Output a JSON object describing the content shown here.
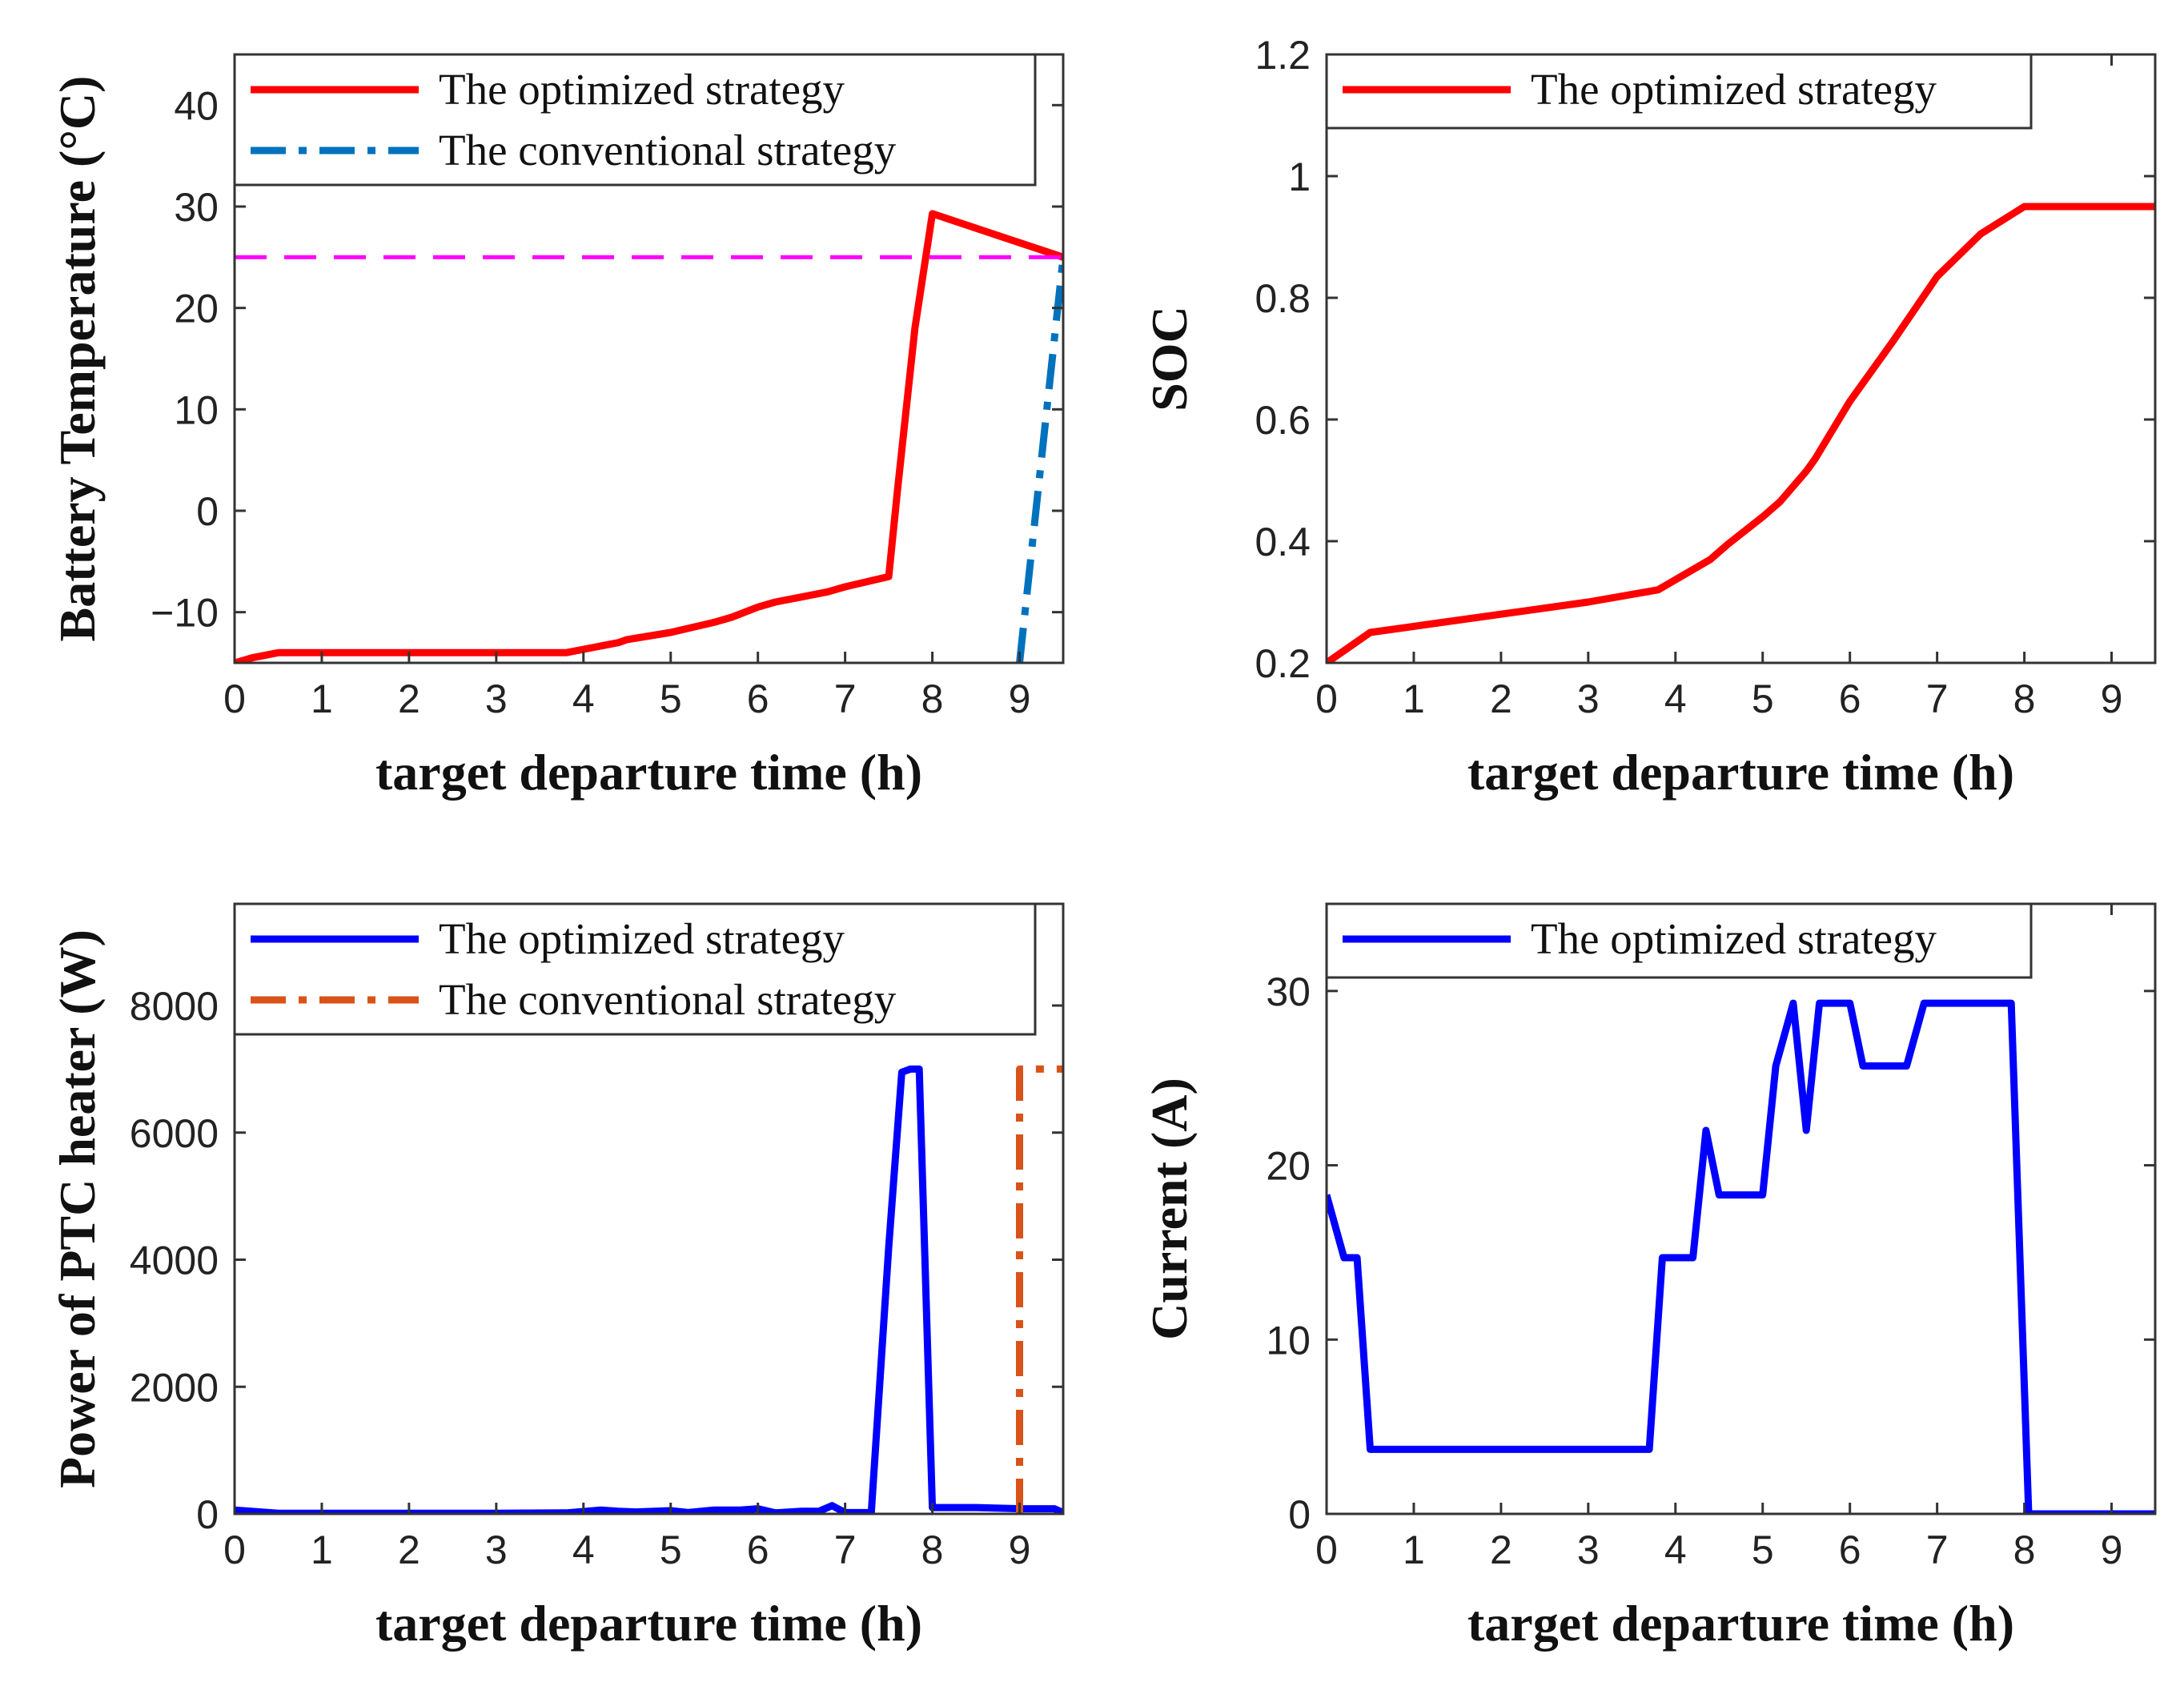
{
  "chart_data": [
    {
      "type": "line",
      "xlabel": "target departure time (h)",
      "ylabel": "Battery Temperature (°C)",
      "xlim": [
        0,
        9.5
      ],
      "ylim": [
        -15,
        45
      ],
      "xticks": [
        "0",
        "1",
        "2",
        "3",
        "4",
        "5",
        "6",
        "7",
        "8",
        "9"
      ],
      "yticks": [
        {
          "v": -10,
          "label": "−10"
        },
        {
          "v": 0,
          "label": "0"
        },
        {
          "v": 10,
          "label": "10"
        },
        {
          "v": 20,
          "label": "20"
        },
        {
          "v": 30,
          "label": "30"
        },
        {
          "v": 40,
          "label": "40"
        }
      ],
      "legend": [
        "The optimized strategy",
        "The conventional strategy"
      ],
      "series": [
        {
          "name": "The optimized strategy",
          "color": "#ff0000",
          "style": "solid",
          "x": [
            0,
            0.2,
            0.5,
            1,
            2,
            3,
            3.8,
            4.1,
            4.4,
            4.5,
            5,
            5.5,
            5.7,
            6,
            6.2,
            6.5,
            6.8,
            7,
            7.5,
            7.6,
            7.8,
            8,
            9.5
          ],
          "y": [
            -15,
            -14.5,
            -14,
            -14,
            -14,
            -14,
            -14,
            -13.5,
            -13,
            -12.7,
            -12,
            -11,
            -10.5,
            -9.5,
            -9,
            -8.5,
            -8,
            -7.5,
            -6.5,
            2,
            18,
            29.3,
            25
          ]
        },
        {
          "name": "The conventional strategy",
          "color": "#0072bd",
          "style": "dashdot",
          "x": [
            9.0,
            9.5
          ],
          "y": [
            -15,
            25
          ]
        },
        {
          "name": "",
          "color": "#ff00ff",
          "style": "dashed",
          "x": [
            0,
            9.5
          ],
          "y": [
            25,
            25
          ]
        }
      ]
    },
    {
      "type": "line",
      "xlabel": "target departure time (h)",
      "ylabel": "SOC",
      "xlim": [
        0,
        9.5
      ],
      "ylim": [
        0.2,
        1.2
      ],
      "xticks": [
        "0",
        "1",
        "2",
        "3",
        "4",
        "5",
        "6",
        "7",
        "8",
        "9"
      ],
      "yticks": [
        {
          "v": 0.2,
          "label": "0.2"
        },
        {
          "v": 0.4,
          "label": "0.4"
        },
        {
          "v": 0.6,
          "label": "0.6"
        },
        {
          "v": 0.8,
          "label": "0.8"
        },
        {
          "v": 1.0,
          "label": "1"
        },
        {
          "v": 1.2,
          "label": "1.2"
        }
      ],
      "legend": [
        "The optimized strategy"
      ],
      "series": [
        {
          "name": "The optimized strategy",
          "color": "#ff0000",
          "style": "solid",
          "x": [
            0,
            0.5,
            1,
            2,
            3,
            3.8,
            4.1,
            4.4,
            4.6,
            5.0,
            5.2,
            5.5,
            5.6,
            6.0,
            6.5,
            7.0,
            7.5,
            8.0,
            9.5
          ],
          "y": [
            0.2,
            0.25,
            0.26,
            0.28,
            0.3,
            0.32,
            0.345,
            0.37,
            0.395,
            0.44,
            0.465,
            0.515,
            0.535,
            0.63,
            0.73,
            0.835,
            0.905,
            0.95,
            0.95
          ]
        }
      ]
    },
    {
      "type": "line",
      "xlabel": "target departure time (h)",
      "ylabel": "Power of PTC heater (W)",
      "xlim": [
        0,
        9.5
      ],
      "ylim": [
        0,
        9600
      ],
      "xticks": [
        "0",
        "1",
        "2",
        "3",
        "4",
        "5",
        "6",
        "7",
        "8",
        "9"
      ],
      "yticks": [
        {
          "v": 0,
          "label": "0"
        },
        {
          "v": 2000,
          "label": "2000"
        },
        {
          "v": 4000,
          "label": "4000"
        },
        {
          "v": 6000,
          "label": "6000"
        },
        {
          "v": 8000,
          "label": "8000"
        }
      ],
      "legend": [
        "The optimized strategy",
        "The conventional strategy"
      ],
      "series": [
        {
          "name": "The optimized strategy",
          "color": "#0000ff",
          "style": "solid",
          "x": [
            0,
            0.5,
            1,
            2,
            3,
            3.8,
            4.2,
            4.4,
            4.6,
            5.0,
            5.2,
            5.5,
            5.8,
            6.0,
            6.2,
            6.5,
            6.7,
            6.85,
            7.0,
            7.3,
            7.5,
            7.65,
            7.75,
            7.85,
            8.0,
            8.5,
            9.0,
            9.4,
            9.5
          ],
          "y": [
            60,
            10,
            10,
            10,
            10,
            15,
            60,
            40,
            30,
            50,
            20,
            60,
            60,
            80,
            15,
            40,
            40,
            130,
            20,
            20,
            4200,
            6950,
            7000,
            7000,
            100,
            100,
            80,
            80,
            20
          ]
        },
        {
          "name": "The conventional strategy",
          "color": "#d95319",
          "style": "dashdot",
          "x": [
            9.0,
            9.0,
            9.5
          ],
          "y": [
            0,
            7000,
            7000
          ]
        }
      ]
    },
    {
      "type": "line",
      "xlabel": "target departure time (h)",
      "ylabel": "Current (A)",
      "xlim": [
        0,
        9.5
      ],
      "ylim": [
        0,
        35
      ],
      "xticks": [
        "0",
        "1",
        "2",
        "3",
        "4",
        "5",
        "6",
        "7",
        "8",
        "9"
      ],
      "yticks": [
        {
          "v": 0,
          "label": "0"
        },
        {
          "v": 10,
          "label": "10"
        },
        {
          "v": 20,
          "label": "20"
        },
        {
          "v": 30,
          "label": "30"
        }
      ],
      "legend": [
        "The optimized strategy"
      ],
      "series": [
        {
          "name": "The optimized strategy",
          "color": "#0000ff",
          "style": "solid",
          "x": [
            0,
            0.2,
            0.35,
            0.5,
            1,
            2,
            3,
            3.7,
            3.85,
            4.2,
            4.35,
            4.5,
            5.0,
            5.15,
            5.35,
            5.5,
            5.65,
            6.0,
            6.15,
            6.65,
            6.85,
            7.0,
            7.5,
            7.85,
            8.05,
            9.5
          ],
          "y": [
            18.3,
            14.7,
            14.7,
            3.7,
            3.7,
            3.7,
            3.7,
            3.7,
            14.7,
            14.7,
            22,
            18.3,
            18.3,
            25.7,
            29.3,
            22,
            29.3,
            29.3,
            25.7,
            25.7,
            29.3,
            29.3,
            29.3,
            29.3,
            0,
            0
          ]
        }
      ]
    }
  ]
}
